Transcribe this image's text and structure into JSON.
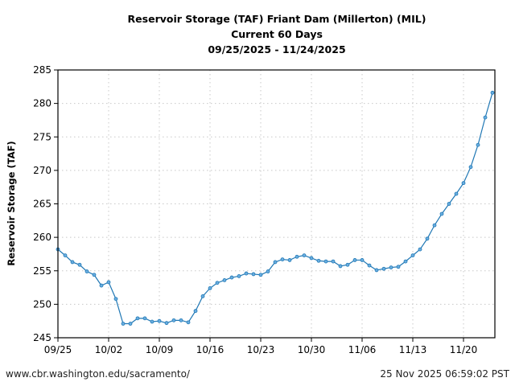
{
  "chart_data": {
    "type": "line",
    "title": [
      "Reservoir Storage (TAF) Friant Dam (Millerton) (MIL)",
      "Current 60 Days",
      "09/25/2025 - 11/24/2025"
    ],
    "xlabel": "",
    "ylabel": "Reservoir Storage (TAF)",
    "ylim": [
      245,
      285
    ],
    "yticks": [
      245,
      250,
      255,
      260,
      265,
      270,
      275,
      280,
      285
    ],
    "xticks": [
      "09/25",
      "10/02",
      "10/09",
      "10/16",
      "10/23",
      "10/30",
      "11/06",
      "11/13",
      "11/20"
    ],
    "grid": true,
    "line_color": "#1f77b4",
    "start_date": "09/25/2025",
    "series": [
      {
        "values": [
          258.2,
          257.3,
          256.3,
          255.9,
          254.9,
          254.4,
          252.8,
          253.3,
          250.8,
          247.1,
          247.1,
          247.9,
          247.9,
          247.4,
          247.5,
          247.2,
          247.6,
          247.6,
          247.3,
          249.0,
          251.2,
          252.4,
          253.2,
          253.6,
          254.0,
          254.2,
          254.6,
          254.5,
          254.4,
          254.9,
          256.3,
          256.7,
          256.6,
          257.1,
          257.3,
          256.9,
          256.5,
          256.4,
          256.4,
          255.7,
          255.9,
          256.6,
          256.6,
          255.8,
          255.1,
          255.3,
          255.5,
          255.6,
          256.4,
          257.3,
          258.2,
          259.8,
          261.8,
          263.5,
          265.0,
          266.5,
          268.1,
          270.5,
          273.8,
          277.9,
          281.6
        ]
      }
    ]
  },
  "footer": {
    "source": "www.cbr.washington.edu/sacramento/",
    "timestamp": "25 Nov 2025 06:59:02 PST"
  }
}
